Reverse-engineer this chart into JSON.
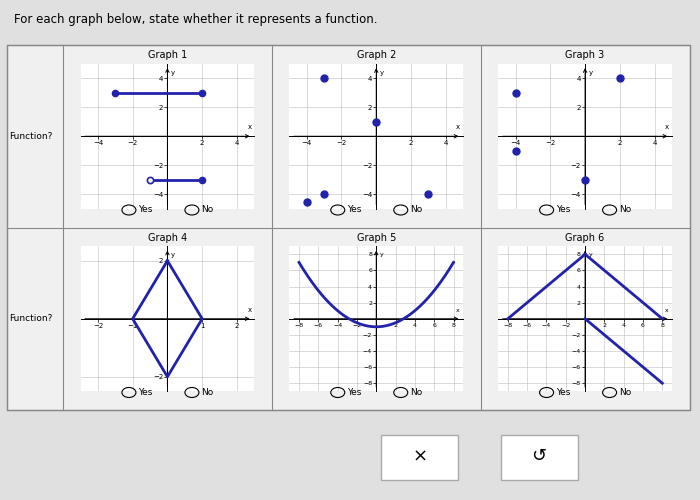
{
  "title": "For each graph below, state whether it represents a function.",
  "graph1": {
    "title": "Graph 1",
    "seg1": {
      "x": [
        -3,
        2
      ],
      "y": [
        3,
        3
      ],
      "filled_left": true,
      "filled_right": true
    },
    "seg2": {
      "x": [
        -1,
        2
      ],
      "y": [
        -3,
        -3
      ],
      "filled_left": false,
      "filled_right": true
    },
    "xlim": [
      -5,
      5
    ],
    "ylim": [
      -5,
      5
    ],
    "xticks": [
      -4,
      -2,
      2,
      4
    ],
    "yticks": [
      -4,
      -2,
      2,
      4
    ]
  },
  "graph2": {
    "title": "Graph 2",
    "points": [
      [
        -3,
        4
      ],
      [
        0,
        1
      ],
      [
        -3,
        -4
      ],
      [
        3,
        -4
      ],
      [
        -4,
        -4.5
      ]
    ],
    "xlim": [
      -5,
      5
    ],
    "ylim": [
      -5,
      5
    ],
    "xticks": [
      -4,
      -2,
      2,
      4
    ],
    "yticks": [
      -4,
      -2,
      2,
      4
    ]
  },
  "graph3": {
    "title": "Graph 3",
    "points": [
      [
        2,
        4
      ],
      [
        -4,
        3
      ],
      [
        -4,
        -1
      ],
      [
        0,
        -3
      ]
    ],
    "xlim": [
      -5,
      5
    ],
    "ylim": [
      -5,
      5
    ],
    "xticks": [
      -4,
      -2,
      2,
      4
    ],
    "yticks": [
      -4,
      -2,
      2,
      4
    ]
  },
  "graph4": {
    "title": "Graph 4",
    "diamond": [
      [
        0,
        2
      ],
      [
        1,
        0
      ],
      [
        0,
        -2
      ],
      [
        -1,
        0
      ]
    ],
    "xlim": [
      -2.5,
      2.5
    ],
    "ylim": [
      -2.5,
      2.5
    ],
    "xticks": [
      -2,
      -1,
      1,
      2
    ],
    "yticks": [
      -2,
      2
    ]
  },
  "graph5": {
    "title": "Graph 5",
    "parabola": true,
    "xlim": [
      -9,
      9
    ],
    "ylim": [
      -9,
      9
    ],
    "xticks": [
      -8,
      -6,
      -4,
      -2,
      2,
      4,
      6,
      8
    ],
    "yticks": [
      -8,
      -6,
      -4,
      -2,
      2,
      4,
      6,
      8
    ]
  },
  "graph6": {
    "title": "Graph 6",
    "lines": [
      {
        "x": [
          -8,
          0
        ],
        "y": [
          0,
          8
        ]
      },
      {
        "x": [
          0,
          8
        ],
        "y": [
          8,
          0
        ]
      },
      {
        "x": [
          0,
          8
        ],
        "y": [
          0,
          -8
        ]
      }
    ],
    "xlim": [
      -9,
      9
    ],
    "ylim": [
      -9,
      9
    ],
    "xticks": [
      -8,
      -6,
      -4,
      -2,
      2,
      4,
      6,
      8
    ],
    "yticks": [
      -8,
      -6,
      -4,
      -2,
      2,
      4,
      6,
      8
    ]
  },
  "dot_color": "#2222aa",
  "line_color": "#2222aa",
  "function_label": "Function?",
  "yes_label": "Yes",
  "no_label": "No",
  "outer_bg": "#d8d8d8",
  "inner_bg": "#e8e8e8",
  "graph_bg": "white",
  "grid_color": "#bbbbbb",
  "cell_edge_color": "#888888"
}
